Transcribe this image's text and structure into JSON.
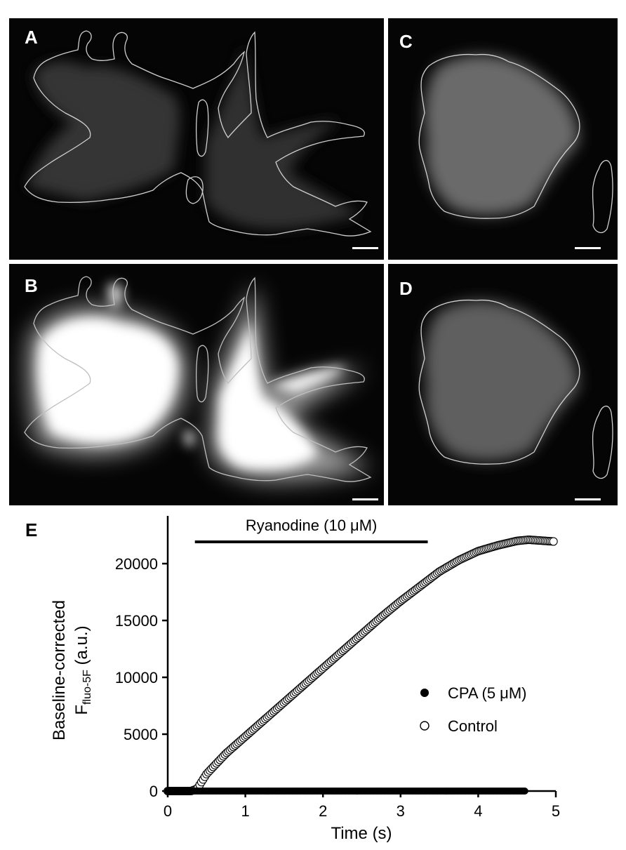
{
  "panels": [
    {
      "label": "A"
    },
    {
      "label": "C"
    },
    {
      "label": "B"
    },
    {
      "label": "D"
    }
  ],
  "chart_label": "E",
  "chart_data": {
    "type": "scatter",
    "xlabel": "Time (s)",
    "ylabel_line1": "Baseline-corrected",
    "ylabel_line2_main": "F",
    "ylabel_line2_sub": "fluo-5F",
    "ylabel_line2_tail": " (a.u.)",
    "xlim": [
      0,
      5
    ],
    "ylim": [
      0,
      24000
    ],
    "xticks": [
      "0",
      "1",
      "2",
      "3",
      "4",
      "5"
    ],
    "yticks": [
      "0",
      "5000",
      "10000",
      "15000",
      "20000"
    ],
    "annotation": {
      "text": "Ryanodine (10 μM)",
      "x_start": 0.35,
      "x_end": 3.35
    },
    "legend_position": "right",
    "series": [
      {
        "name": "CPA (5 μM)",
        "marker": "filled-circle",
        "x_start": 0,
        "x_end": 4.6,
        "n_points": 230,
        "y_constant": 0
      },
      {
        "name": "Control",
        "marker": "open-circle",
        "x": [
          0,
          0.3,
          0.38,
          0.5,
          0.75,
          1.0,
          1.25,
          1.5,
          1.75,
          2.0,
          2.25,
          2.5,
          2.75,
          3.0,
          3.25,
          3.5,
          3.75,
          4.0,
          4.25,
          4.5,
          4.65,
          4.97
        ],
        "y": [
          0,
          0,
          200,
          1500,
          3300,
          4800,
          6300,
          7800,
          9300,
          10800,
          12300,
          13800,
          15300,
          16700,
          18000,
          19300,
          20300,
          21100,
          21600,
          22000,
          22100,
          21950
        ],
        "n_points": 230
      }
    ]
  }
}
